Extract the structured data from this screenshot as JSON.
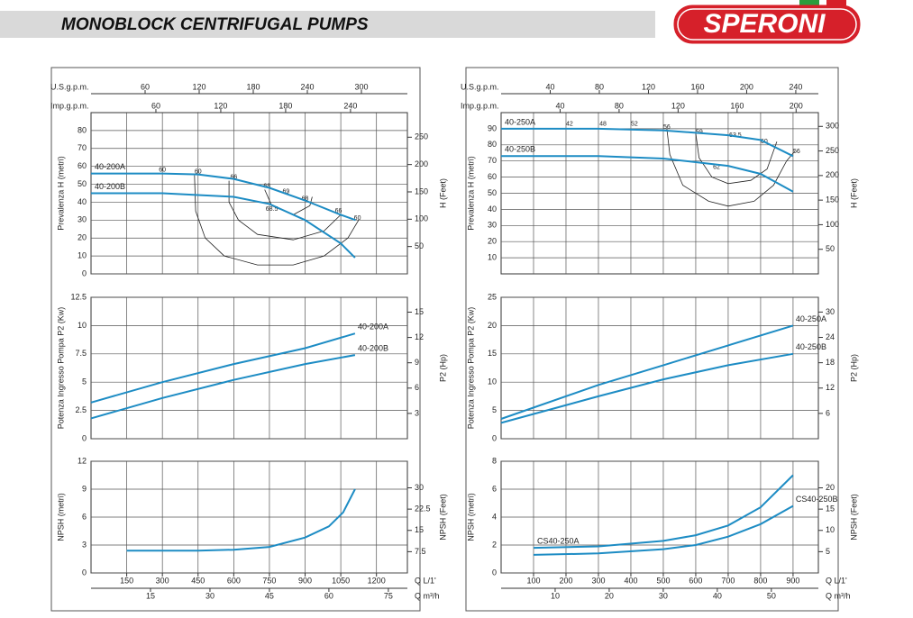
{
  "header": {
    "title": "MONOBLOCK CENTRIFUGAL PUMPS",
    "logo": "SPERONI"
  },
  "chart_data": [
    {
      "type": "line",
      "ylabel": "Prevalenza H (metri)",
      "y2label": "H (Feet)",
      "xlim": [
        0,
        1330
      ],
      "ylim": [
        0,
        90
      ],
      "yticks": [
        0,
        10,
        20,
        30,
        40,
        50,
        60,
        70,
        80
      ],
      "y2lim": [
        0,
        295
      ],
      "y2ticks": [
        50,
        100,
        150,
        200,
        250
      ],
      "grid": true,
      "top_axes": [
        {
          "label": "U.S.g.p.m.",
          "lim": [
            0,
            351
          ],
          "ticks": [
            60,
            120,
            180,
            240,
            300
          ]
        },
        {
          "label": "Imp.g.p.m.",
          "lim": [
            0,
            292.6
          ],
          "ticks": [
            60,
            120,
            180,
            240
          ]
        }
      ],
      "series": [
        {
          "name": "40-200A",
          "color": "#1d8cc4",
          "x": [
            0,
            150,
            300,
            450,
            600,
            750,
            900,
            1050,
            1112
          ],
          "values": [
            56,
            56,
            56,
            55.5,
            53,
            48,
            41,
            33,
            30
          ]
        },
        {
          "name": "40-200B",
          "color": "#1d8cc4",
          "x": [
            0,
            150,
            300,
            450,
            600,
            750,
            900,
            1050,
            1110
          ],
          "values": [
            45,
            45,
            45,
            44,
            43,
            39,
            30,
            17,
            9
          ]
        }
      ],
      "iso_curves": [
        {
          "x": [
            435,
            440,
            480,
            560,
            700,
            850,
            980,
            1080,
            1125
          ],
          "y": [
            55,
            35,
            20,
            10,
            5,
            5,
            10,
            20,
            30
          ]
        },
        {
          "x": [
            580,
            580,
            620,
            700,
            850,
            980,
            1050
          ],
          "y": [
            52,
            40,
            30,
            22,
            19,
            24,
            33
          ]
        },
        {
          "x": [
            730,
            760,
            850,
            920,
            930
          ],
          "y": [
            47,
            38,
            33,
            38,
            43
          ]
        }
      ],
      "annotations": [
        {
          "text": "60",
          "x": 300,
          "y": 58
        },
        {
          "text": "60",
          "x": 450,
          "y": 57
        },
        {
          "text": "66",
          "x": 600,
          "y": 54
        },
        {
          "text": "68",
          "x": 740,
          "y": 49
        },
        {
          "text": "69",
          "x": 820,
          "y": 46
        },
        {
          "text": "68",
          "x": 900,
          "y": 42
        },
        {
          "text": "68.5",
          "x": 760,
          "y": 36
        },
        {
          "text": "66",
          "x": 1040,
          "y": 35
        },
        {
          "text": "60",
          "x": 1120,
          "y": 31
        }
      ]
    },
    {
      "type": "line",
      "ylabel": "Potenza Ingresso Pompa P2 (Kw)",
      "y2label": "P2 (Hp)",
      "xlim": [
        0,
        1330
      ],
      "ylim": [
        0,
        12.5
      ],
      "yticks": [
        0,
        2.5,
        5,
        7.5,
        10,
        12.5
      ],
      "y2lim": [
        0,
        16.76
      ],
      "y2ticks": [
        3,
        6,
        9,
        12,
        15
      ],
      "grid": true,
      "series": [
        {
          "name": "40-200A",
          "color": "#1d8cc4",
          "x": [
            0,
            300,
            600,
            900,
            1110
          ],
          "values": [
            3.2,
            5.0,
            6.6,
            8.0,
            9.3
          ]
        },
        {
          "name": "40-200B",
          "color": "#1d8cc4",
          "x": [
            0,
            300,
            600,
            900,
            1110
          ],
          "values": [
            1.8,
            3.6,
            5.2,
            6.6,
            7.4
          ]
        }
      ]
    },
    {
      "type": "line",
      "ylabel": "NPSH (metri)",
      "y2label": "NPSH (Feet)",
      "xlim": [
        0,
        1330
      ],
      "ylim": [
        0,
        12
      ],
      "yticks": [
        0,
        3,
        6,
        9,
        12
      ],
      "y2lim": [
        0,
        39.37
      ],
      "y2ticks": [
        7.5,
        15,
        22.5,
        30
      ],
      "grid": true,
      "bottom_axes": [
        {
          "label": "Q L/1'",
          "lim": [
            0,
            1330
          ],
          "ticks": [
            150,
            300,
            450,
            600,
            750,
            900,
            1050,
            1200
          ]
        },
        {
          "label": "Q m³/h",
          "lim": [
            0,
            79.8
          ],
          "ticks": [
            15,
            30,
            45,
            60,
            75
          ]
        }
      ],
      "series": [
        {
          "name": "NPSH",
          "color": "#1d8cc4",
          "x": [
            150,
            450,
            600,
            750,
            900,
            1000,
            1060,
            1110
          ],
          "values": [
            2.4,
            2.4,
            2.5,
            2.8,
            3.8,
            5.0,
            6.5,
            9.0
          ]
        }
      ]
    },
    {
      "type": "line",
      "ylabel": "Prevalenza H (metri)",
      "y2label": "H (Feet)",
      "xlim": [
        0,
        978
      ],
      "ylim": [
        0,
        100
      ],
      "yticks": [
        10,
        20,
        30,
        40,
        50,
        60,
        70,
        80,
        90
      ],
      "y2lim": [
        0,
        328
      ],
      "y2ticks": [
        50,
        100,
        150,
        200,
        250,
        300
      ],
      "grid": true,
      "top_axes": [
        {
          "label": "U.S.g.p.m.",
          "lim": [
            0,
            258.4
          ],
          "ticks": [
            40,
            80,
            120,
            160,
            200,
            240
          ]
        },
        {
          "label": "Imp.g.p.m.",
          "lim": [
            0,
            215.1
          ],
          "ticks": [
            40,
            80,
            120,
            160,
            200
          ]
        }
      ],
      "series": [
        {
          "name": "40-250A",
          "color": "#1d8cc4",
          "x": [
            0,
            300,
            500,
            700,
            800,
            900
          ],
          "values": [
            90,
            90,
            89,
            86,
            83,
            73
          ]
        },
        {
          "name": "40-250B",
          "color": "#1d8cc4",
          "x": [
            0,
            300,
            500,
            700,
            800,
            900
          ],
          "values": [
            73,
            73,
            71.5,
            67,
            62,
            51
          ]
        }
      ],
      "iso_curves": [
        {
          "x": [
            511,
            520,
            560,
            640,
            700,
            780,
            840,
            880,
            905
          ],
          "y": [
            90,
            74,
            55,
            45,
            42,
            45,
            55,
            70,
            76
          ]
        },
        {
          "x": [
            600,
            610,
            650,
            700,
            770,
            820,
            850
          ],
          "y": [
            87,
            72,
            60,
            56,
            58,
            65,
            82
          ]
        }
      ],
      "annotations": [
        {
          "text": "42",
          "x": 211,
          "y": 93
        },
        {
          "text": "48",
          "x": 314,
          "y": 93
        },
        {
          "text": "52",
          "x": 411,
          "y": 93
        },
        {
          "text": "56",
          "x": 511,
          "y": 91
        },
        {
          "text": "59",
          "x": 611,
          "y": 88
        },
        {
          "text": "63.5",
          "x": 722,
          "y": 86
        },
        {
          "text": "60",
          "x": 811,
          "y": 82
        },
        {
          "text": "56",
          "x": 911,
          "y": 76
        },
        {
          "text": "62",
          "x": 664,
          "y": 66
        }
      ]
    },
    {
      "type": "line",
      "ylabel": "Potenza Ingresso Pompa P2 (Kw)",
      "y2label": "P2 (Hp)",
      "xlim": [
        0,
        978
      ],
      "ylim": [
        0,
        25
      ],
      "yticks": [
        0,
        5,
        10,
        15,
        20,
        25
      ],
      "y2lim": [
        0,
        33.5
      ],
      "y2ticks": [
        6,
        12,
        18,
        24,
        30
      ],
      "grid": true,
      "series": [
        {
          "name": "40-250A",
          "color": "#1d8cc4",
          "x": [
            0,
            300,
            500,
            700,
            900
          ],
          "values": [
            3.5,
            9.5,
            13,
            16.5,
            20
          ]
        },
        {
          "name": "40-250B",
          "color": "#1d8cc4",
          "x": [
            0,
            300,
            500,
            700,
            900
          ],
          "values": [
            2.8,
            7.5,
            10.5,
            13,
            15
          ]
        }
      ]
    },
    {
      "type": "line",
      "ylabel": "NPSH (metri)",
      "y2label": "NPSH (Feet)",
      "xlim": [
        0,
        978
      ],
      "ylim": [
        0,
        8
      ],
      "yticks": [
        0,
        2,
        4,
        6,
        8
      ],
      "y2lim": [
        0,
        26.25
      ],
      "y2ticks": [
        5,
        10,
        15,
        20
      ],
      "grid": true,
      "bottom_axes": [
        {
          "label": "Q L/1'",
          "lim": [
            0,
            978
          ],
          "ticks": [
            100,
            200,
            300,
            400,
            500,
            600,
            700,
            800,
            900
          ]
        },
        {
          "label": "Q m³/h",
          "lim": [
            0,
            58.7
          ],
          "ticks": [
            10,
            20,
            30,
            40,
            50
          ]
        }
      ],
      "series": [
        {
          "name": "CS40-250A",
          "color": "#1d8cc4",
          "x": [
            100,
            300,
            500,
            600,
            700,
            800,
            900
          ],
          "values": [
            1.8,
            1.9,
            2.3,
            2.7,
            3.4,
            4.7,
            7.0
          ]
        },
        {
          "name": "CS40-250B",
          "color": "#1d8cc4",
          "x": [
            100,
            300,
            500,
            600,
            700,
            800,
            900
          ],
          "values": [
            1.3,
            1.4,
            1.7,
            2.0,
            2.6,
            3.5,
            4.8
          ]
        }
      ]
    }
  ]
}
